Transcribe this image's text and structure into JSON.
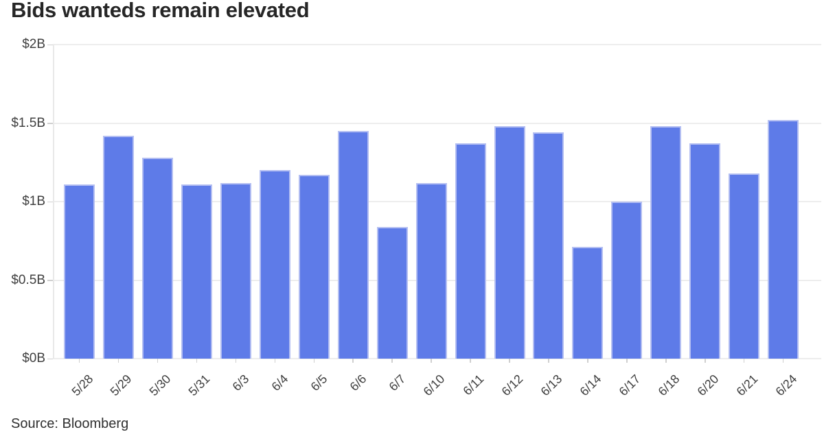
{
  "title": "Bids wanteds remain elevated",
  "source": "Source: Bloomberg",
  "colors": {
    "bar_fill": "#5e7be8",
    "bar_border": "#b3bef2",
    "gridline": "#ededed",
    "axis_line": "#e9e9e9",
    "tick": "#cfcfcf",
    "title_text": "#262626",
    "axis_text": "#3f3f3f",
    "source_text": "#2f2f2f",
    "background": "#ffffff"
  },
  "chart_data": {
    "type": "bar",
    "title": "Bids wanteds remain elevated",
    "categories": [
      "5/28",
      "5/29",
      "5/30",
      "5/31",
      "6/3",
      "6/4",
      "6/5",
      "6/6",
      "6/7",
      "6/10",
      "6/11",
      "6/12",
      "6/13",
      "6/14",
      "6/17",
      "6/18",
      "6/20",
      "6/21",
      "6/24"
    ],
    "values": [
      1.11,
      1.42,
      1.28,
      1.11,
      1.12,
      1.2,
      1.17,
      1.45,
      0.84,
      1.12,
      1.37,
      1.48,
      1.44,
      0.71,
      1.0,
      1.48,
      1.37,
      1.18,
      1.52
    ],
    "unit": "billions USD",
    "xlabel": "",
    "ylabel": "",
    "ylim": [
      0,
      2
    ],
    "y_ticks": [
      {
        "value": 0,
        "label": "$0B"
      },
      {
        "value": 0.5,
        "label": "$0.5B"
      },
      {
        "value": 1,
        "label": "$1B"
      },
      {
        "value": 1.5,
        "label": "$1.5B"
      },
      {
        "value": 2,
        "label": "$2B"
      }
    ],
    "grid": true,
    "legend": false,
    "source": "Source: Bloomberg"
  }
}
